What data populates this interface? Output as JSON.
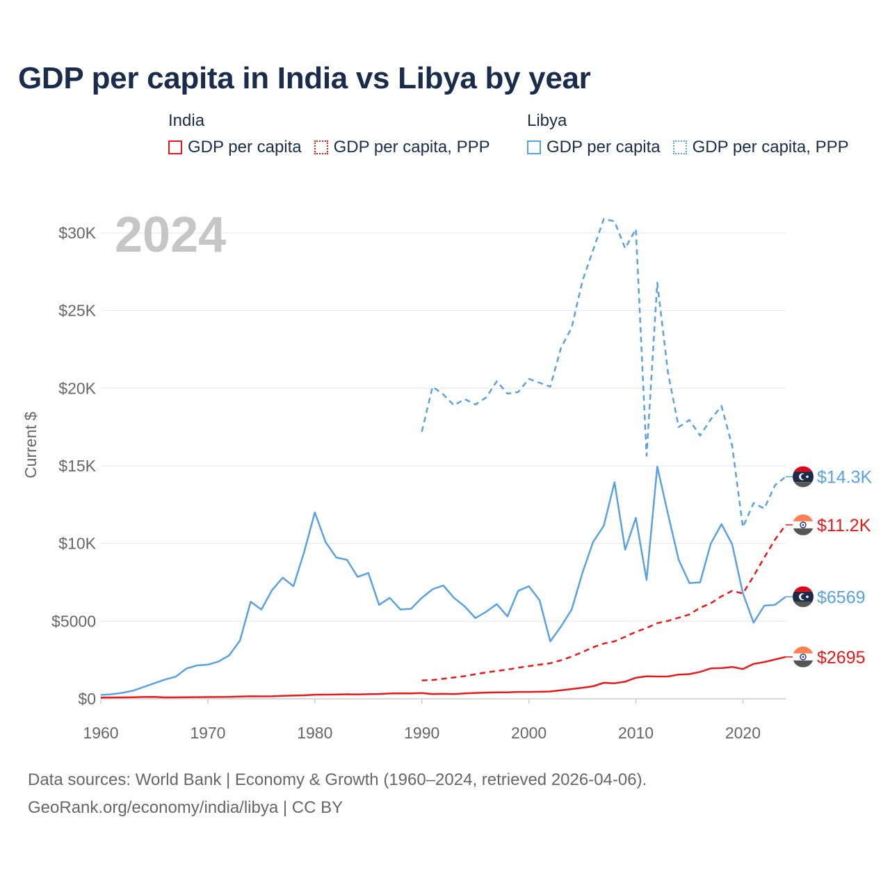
{
  "title": "GDP per capita in India vs Libya by year",
  "legend": {
    "groups": [
      {
        "country": "India",
        "items": [
          {
            "label": "GDP per capita",
            "color": "#e61919",
            "style": "solid"
          },
          {
            "label": "GDP per capita, PPP",
            "color": "#e61919",
            "style": "dotted"
          }
        ]
      },
      {
        "country": "Libya",
        "items": [
          {
            "label": "GDP per capita",
            "color": "#5aa1e3",
            "style": "solid"
          },
          {
            "label": "GDP per capita, PPP",
            "color": "#5aa1e3",
            "style": "dotted"
          }
        ]
      }
    ]
  },
  "footer": {
    "sources": "Data sources: World Bank | Economy & Growth (1960–2024, retrieved 2026-04-06).",
    "credit": "GeoRank.org/economy/india/libya | CC BY"
  },
  "chart_data": {
    "type": "line",
    "title": "GDP per capita in India vs Libya by year",
    "year_label": "2024",
    "xlabel": "",
    "ylabel": "Current $",
    "xlim": [
      1960,
      2024
    ],
    "ylim": [
      0,
      31500
    ],
    "x_ticks": [
      1960,
      1970,
      1980,
      1990,
      2000,
      2010,
      2020
    ],
    "x_tick_labels": [
      "1960",
      "1970",
      "1980",
      "1990",
      "2000",
      "2010",
      "2020"
    ],
    "y_ticks": [
      0,
      5000,
      10000,
      15000,
      20000,
      25000,
      30000
    ],
    "y_tick_labels": [
      "$0",
      "$5000",
      "$10K",
      "$15K",
      "$20K",
      "$25K",
      "$30K"
    ],
    "grid": true,
    "series": [
      {
        "name": "Libya GDP per capita, PPP",
        "country": "Libya",
        "metric": "GDP per capita, PPP",
        "color": "#5aa1e3",
        "dashed": true,
        "end_label": "$14.3K",
        "flag": "libya",
        "x": [
          1990,
          1991,
          1992,
          1993,
          1994,
          1995,
          1996,
          1997,
          1998,
          1999,
          2000,
          2001,
          2002,
          2003,
          2004,
          2005,
          2006,
          2007,
          2008,
          2009,
          2010,
          2011,
          2012,
          2013,
          2014,
          2015,
          2016,
          2017,
          2018,
          2019,
          2020,
          2021,
          2022,
          2023,
          2024
        ],
        "values": [
          17200,
          20100,
          19600,
          18900,
          19300,
          18950,
          19400,
          20450,
          19650,
          19750,
          20600,
          20350,
          20100,
          22600,
          23900,
          26900,
          28900,
          30900,
          30750,
          29000,
          30250,
          15650,
          26800,
          21000,
          17500,
          17950,
          16950,
          18000,
          18850,
          16300,
          11050,
          12600,
          12250,
          13750,
          14300
        ]
      },
      {
        "name": "Libya GDP per capita",
        "country": "Libya",
        "metric": "GDP per capita",
        "color": "#5aa1e3",
        "dashed": false,
        "end_label": "$6569",
        "flag": "libya",
        "x": [
          1960,
          1961,
          1962,
          1963,
          1964,
          1965,
          1966,
          1967,
          1968,
          1969,
          1970,
          1971,
          1972,
          1973,
          1974,
          1975,
          1976,
          1977,
          1978,
          1979,
          1980,
          1981,
          1982,
          1983,
          1984,
          1985,
          1986,
          1987,
          1988,
          1989,
          1990,
          1991,
          1992,
          1993,
          1994,
          1995,
          1996,
          1997,
          1998,
          1999,
          2000,
          2001,
          2002,
          2003,
          2004,
          2005,
          2006,
          2007,
          2008,
          2009,
          2010,
          2011,
          2012,
          2013,
          2014,
          2015,
          2016,
          2017,
          2018,
          2019,
          2020,
          2021,
          2022,
          2023,
          2024
        ],
        "values": [
          250,
          290,
          380,
          520,
          760,
          1000,
          1240,
          1420,
          1950,
          2150,
          2200,
          2400,
          2800,
          3750,
          6250,
          5750,
          7000,
          7800,
          7250,
          9450,
          12000,
          10100,
          9100,
          8950,
          7850,
          8100,
          6050,
          6500,
          5750,
          5800,
          6500,
          7050,
          7300,
          6500,
          5950,
          5200,
          5600,
          6100,
          5300,
          6950,
          7250,
          6350,
          3700,
          4650,
          5750,
          8100,
          10100,
          11150,
          13950,
          9600,
          11650,
          7650,
          14950,
          11900,
          8950,
          7450,
          7500,
          10000,
          11250,
          9950,
          6800,
          4900,
          6000,
          6050,
          6569
        ]
      },
      {
        "name": "India GDP per capita, PPP",
        "country": "India",
        "metric": "GDP per capita, PPP",
        "color": "#e61919",
        "dashed": true,
        "end_label": "$11.2K",
        "flag": "india",
        "x": [
          1990,
          1991,
          1992,
          1993,
          1994,
          1995,
          1996,
          1997,
          1998,
          1999,
          2000,
          2001,
          2002,
          2003,
          2004,
          2005,
          2006,
          2007,
          2008,
          2009,
          2010,
          2011,
          2012,
          2013,
          2014,
          2015,
          2016,
          2017,
          2018,
          2019,
          2020,
          2021,
          2022,
          2023,
          2024
        ],
        "values": [
          1180,
          1210,
          1290,
          1370,
          1460,
          1580,
          1700,
          1790,
          1880,
          2000,
          2100,
          2200,
          2290,
          2480,
          2720,
          3010,
          3320,
          3560,
          3700,
          3990,
          4310,
          4560,
          4870,
          5020,
          5220,
          5430,
          5860,
          6150,
          6600,
          6950,
          6780,
          7900,
          9100,
          10250,
          11200
        ]
      },
      {
        "name": "India GDP per capita",
        "country": "India",
        "metric": "GDP per capita",
        "color": "#e61919",
        "dashed": false,
        "end_label": "$2695",
        "flag": "india",
        "x": [
          1960,
          1961,
          1962,
          1963,
          1964,
          1965,
          1966,
          1967,
          1968,
          1969,
          1970,
          1971,
          1972,
          1973,
          1974,
          1975,
          1976,
          1977,
          1978,
          1979,
          1980,
          1981,
          1982,
          1983,
          1984,
          1985,
          1986,
          1987,
          1988,
          1989,
          1990,
          1991,
          1992,
          1993,
          1994,
          1995,
          1996,
          1997,
          1998,
          1999,
          2000,
          2001,
          2002,
          2003,
          2004,
          2005,
          2006,
          2007,
          2008,
          2009,
          2010,
          2011,
          2012,
          2013,
          2014,
          2015,
          2016,
          2017,
          2018,
          2019,
          2020,
          2021,
          2022,
          2023,
          2024
        ],
        "values": [
          82,
          85,
          90,
          101,
          116,
          119,
          90,
          96,
          99,
          107,
          112,
          118,
          122,
          143,
          163,
          158,
          161,
          186,
          206,
          224,
          266,
          270,
          274,
          291,
          277,
          296,
          310,
          340,
          354,
          346,
          368,
          303,
          317,
          301,
          346,
          374,
          400,
          415,
          413,
          442,
          443,
          451,
          470,
          546,
          627,
          714,
          806,
          1028,
          998,
          1102,
          1358,
          1450,
          1434,
          1438,
          1560,
          1590,
          1733,
          1958,
          1974,
          2050,
          1915,
          2250,
          2366,
          2530,
          2695
        ]
      }
    ]
  }
}
